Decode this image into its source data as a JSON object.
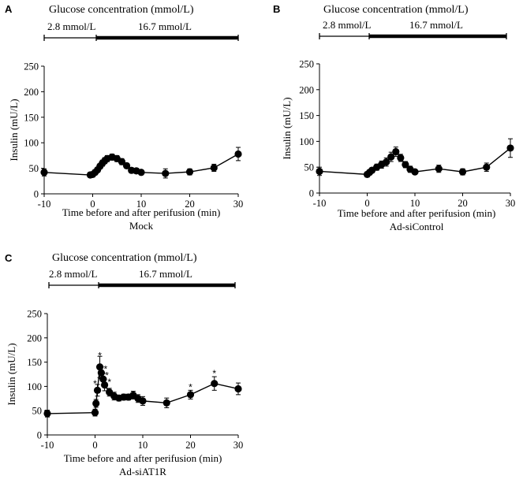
{
  "glucose_bar_label": "Glucose concentration (mmol/L)",
  "low_glucose_label": "2.8 mmol/L",
  "high_glucose_label": "16.7 mmol/L",
  "significance_marker": "*",
  "chart_data": [
    {
      "panel": "A",
      "type": "line",
      "subtitle": "Mock",
      "xlabel": "Time before and after perifusion (min)",
      "ylabel": "Insulin (mU/L)",
      "xlim": [
        -10,
        30
      ],
      "ylim": [
        0,
        250
      ],
      "xticks": [
        -10,
        0,
        10,
        20,
        30
      ],
      "yticks": [
        0,
        50,
        100,
        150,
        200,
        250
      ],
      "points": [
        {
          "x": -10,
          "y": 42,
          "err": 7
        },
        {
          "x": -0.5,
          "y": 37,
          "err": 5
        },
        {
          "x": 0,
          "y": 38,
          "err": 5
        },
        {
          "x": 0.5,
          "y": 42,
          "err": 5
        },
        {
          "x": 1,
          "y": 47,
          "err": 5
        },
        {
          "x": 1.5,
          "y": 54,
          "err": 5
        },
        {
          "x": 2,
          "y": 60,
          "err": 6
        },
        {
          "x": 2.5,
          "y": 65,
          "err": 6
        },
        {
          "x": 3,
          "y": 69,
          "err": 6
        },
        {
          "x": 4,
          "y": 72,
          "err": 6
        },
        {
          "x": 5,
          "y": 69,
          "err": 6
        },
        {
          "x": 6,
          "y": 63,
          "err": 6
        },
        {
          "x": 7,
          "y": 55,
          "err": 5
        },
        {
          "x": 8,
          "y": 46,
          "err": 5
        },
        {
          "x": 9,
          "y": 45,
          "err": 5
        },
        {
          "x": 10,
          "y": 42,
          "err": 5
        },
        {
          "x": 15,
          "y": 40,
          "err": 9
        },
        {
          "x": 20,
          "y": 43,
          "err": 6
        },
        {
          "x": 25,
          "y": 51,
          "err": 7
        },
        {
          "x": 30,
          "y": 78,
          "err": 13
        }
      ],
      "significant": []
    },
    {
      "panel": "B",
      "type": "line",
      "subtitle": "Ad-siControl",
      "xlabel": "Time before and after perifusion (min)",
      "ylabel": "Insulin (mU/L)",
      "xlim": [
        -10,
        30
      ],
      "ylim": [
        0,
        250
      ],
      "xticks": [
        -10,
        0,
        10,
        20,
        30
      ],
      "yticks": [
        0,
        50,
        100,
        150,
        200,
        250
      ],
      "points": [
        {
          "x": -10,
          "y": 42,
          "err": 8
        },
        {
          "x": 0,
          "y": 36,
          "err": 5
        },
        {
          "x": 0.5,
          "y": 40,
          "err": 5
        },
        {
          "x": 1,
          "y": 44,
          "err": 5
        },
        {
          "x": 2,
          "y": 50,
          "err": 6
        },
        {
          "x": 3,
          "y": 55,
          "err": 7
        },
        {
          "x": 4,
          "y": 60,
          "err": 8
        },
        {
          "x": 5,
          "y": 70,
          "err": 9
        },
        {
          "x": 6,
          "y": 80,
          "err": 9
        },
        {
          "x": 7,
          "y": 68,
          "err": 7
        },
        {
          "x": 8,
          "y": 55,
          "err": 6
        },
        {
          "x": 9,
          "y": 46,
          "err": 6
        },
        {
          "x": 10,
          "y": 41,
          "err": 5
        },
        {
          "x": 15,
          "y": 47,
          "err": 7
        },
        {
          "x": 20,
          "y": 41,
          "err": 6
        },
        {
          "x": 25,
          "y": 50,
          "err": 8
        },
        {
          "x": 30,
          "y": 87,
          "err": 18
        }
      ],
      "significant": []
    },
    {
      "panel": "C",
      "type": "line",
      "subtitle": "Ad-siAT1R",
      "xlabel": "Time before and after perifusion (min)",
      "ylabel": "Insulin (mU/L)",
      "xlim": [
        -10,
        30
      ],
      "ylim": [
        0,
        250
      ],
      "xticks": [
        -10,
        0,
        10,
        20,
        30
      ],
      "yticks": [
        0,
        50,
        100,
        150,
        200,
        250
      ],
      "points": [
        {
          "x": -10,
          "y": 44,
          "err": 7
        },
        {
          "x": 0,
          "y": 46,
          "err": 7
        },
        {
          "x": 0.2,
          "y": 65,
          "err": 8
        },
        {
          "x": 0.5,
          "y": 92,
          "err": 12
        },
        {
          "x": 1,
          "y": 140,
          "err": 22
        },
        {
          "x": 1.3,
          "y": 128,
          "err": 12
        },
        {
          "x": 1.7,
          "y": 115,
          "err": 12
        },
        {
          "x": 2,
          "y": 103,
          "err": 12
        },
        {
          "x": 3,
          "y": 88,
          "err": 8
        },
        {
          "x": 4,
          "y": 80,
          "err": 8
        },
        {
          "x": 5,
          "y": 76,
          "err": 6
        },
        {
          "x": 6,
          "y": 78,
          "err": 6
        },
        {
          "x": 7,
          "y": 78,
          "err": 6
        },
        {
          "x": 8,
          "y": 82,
          "err": 8
        },
        {
          "x": 9,
          "y": 75,
          "err": 8
        },
        {
          "x": 10,
          "y": 70,
          "err": 9
        },
        {
          "x": 15,
          "y": 66,
          "err": 10
        },
        {
          "x": 20,
          "y": 83,
          "err": 9
        },
        {
          "x": 25,
          "y": 106,
          "err": 14
        },
        {
          "x": 30,
          "y": 95,
          "err": 12
        }
      ],
      "significant": [
        {
          "x": 0,
          "y": 107
        },
        {
          "x": 1,
          "y": 165
        },
        {
          "x": 2.2,
          "y": 137
        },
        {
          "x": 2.5,
          "y": 124
        },
        {
          "x": 3,
          "y": 110
        },
        {
          "x": 20,
          "y": 100
        },
        {
          "x": 25,
          "y": 128
        }
      ]
    }
  ]
}
